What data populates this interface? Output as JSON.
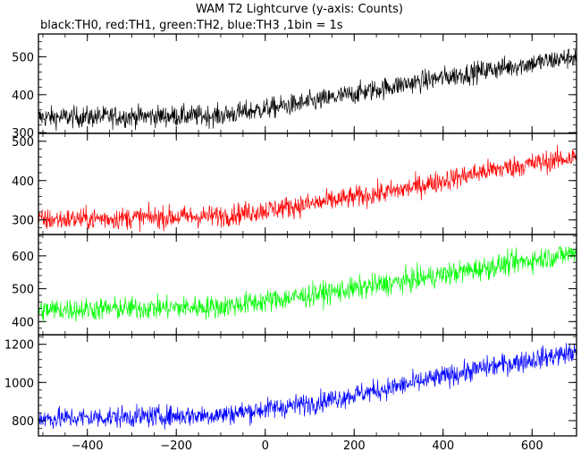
{
  "chart_data": {
    "type": "line",
    "title": "WAM T2 Lightcurve (y-axis: Counts)",
    "subtitle": "black:TH0, red:TH1, green:TH2, blue:TH3 ,1bin = 1s",
    "xlabel": "",
    "ylabel": "",
    "xlim": [
      -510,
      700
    ],
    "x_ticks": [
      -400,
      -200,
      0,
      200,
      400,
      600
    ],
    "grid": false,
    "panels": [
      {
        "name": "TH0",
        "color": "#000000",
        "ylim": [
          298,
          560
        ],
        "y_ticks": [
          300,
          400,
          500
        ],
        "trend": [
          [
            -510,
            340
          ],
          [
            -100,
            345
          ],
          [
            100,
            380
          ],
          [
            300,
            425
          ],
          [
            500,
            465
          ],
          [
            700,
            500
          ]
        ],
        "noise": 20
      },
      {
        "name": "TH1",
        "color": "#ff0000",
        "ylim": [
          263,
          520
        ],
        "y_ticks": [
          300,
          400,
          500
        ],
        "trend": [
          [
            -510,
            300
          ],
          [
            -100,
            310
          ],
          [
            100,
            340
          ],
          [
            300,
            375
          ],
          [
            500,
            425
          ],
          [
            700,
            460
          ]
        ],
        "noise": 20
      },
      {
        "name": "TH2",
        "color": "#00ff00",
        "ylim": [
          360,
          665
        ],
        "y_ticks": [
          400,
          500,
          600
        ],
        "trend": [
          [
            -510,
            435
          ],
          [
            -100,
            445
          ],
          [
            100,
            480
          ],
          [
            300,
            520
          ],
          [
            500,
            565
          ],
          [
            700,
            610
          ]
        ],
        "noise": 25
      },
      {
        "name": "TH3",
        "color": "#0000ff",
        "ylim": [
          720,
          1250
        ],
        "y_ticks": [
          800,
          1000,
          1200
        ],
        "trend": [
          [
            -510,
            810
          ],
          [
            -100,
            830
          ],
          [
            100,
            890
          ],
          [
            300,
            980
          ],
          [
            500,
            1080
          ],
          [
            700,
            1160
          ]
        ],
        "noise": 40
      }
    ]
  }
}
